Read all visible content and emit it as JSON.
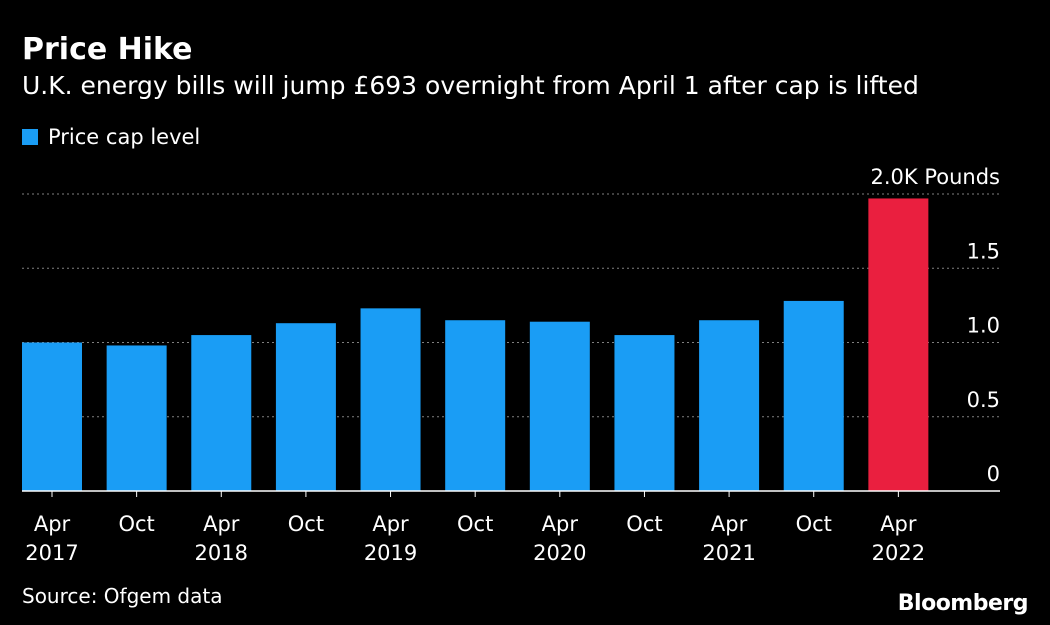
{
  "header": {
    "title": "Price Hike",
    "subtitle": "U.K. energy bills will jump £693 overnight from April 1 after cap is lifted"
  },
  "footer": {
    "source": "Source: Ofgem data",
    "brand": "Bloomberg"
  },
  "colors": {
    "background": "#000000",
    "bar": "#1a9df5",
    "highlight": "#ea1f3f",
    "grid": "#808080",
    "text": "#ffffff"
  },
  "chart_data": {
    "type": "bar",
    "unit_label": "2.0K Pounds",
    "categories": [
      {
        "line1": "Apr",
        "line2": "2017"
      },
      {
        "line1": "Oct",
        "line2": ""
      },
      {
        "line1": "Apr",
        "line2": "2018"
      },
      {
        "line1": "Oct",
        "line2": ""
      },
      {
        "line1": "Apr",
        "line2": "2019"
      },
      {
        "line1": "Oct",
        "line2": ""
      },
      {
        "line1": "Apr",
        "line2": "2020"
      },
      {
        "line1": "Oct",
        "line2": ""
      },
      {
        "line1": "Apr",
        "line2": "2021"
      },
      {
        "line1": "Oct",
        "line2": ""
      },
      {
        "line1": "Apr",
        "line2": "2022"
      }
    ],
    "series": [
      {
        "name": "Price cap level",
        "values": [
          1.0,
          0.98,
          1.05,
          1.13,
          1.23,
          1.15,
          1.14,
          1.05,
          1.15,
          1.28,
          1.97
        ]
      }
    ],
    "highlight_index": 10,
    "y_ticks": [
      {
        "value": 0,
        "label": "0"
      },
      {
        "value": 0.5,
        "label": "0.5"
      },
      {
        "value": 1.0,
        "label": "1.0"
      },
      {
        "value": 1.5,
        "label": "1.5"
      },
      {
        "value": 2.0,
        "label": "2.0K Pounds"
      }
    ],
    "ylim": [
      0,
      2.0
    ],
    "grid": true,
    "legend_position": "top-left"
  }
}
